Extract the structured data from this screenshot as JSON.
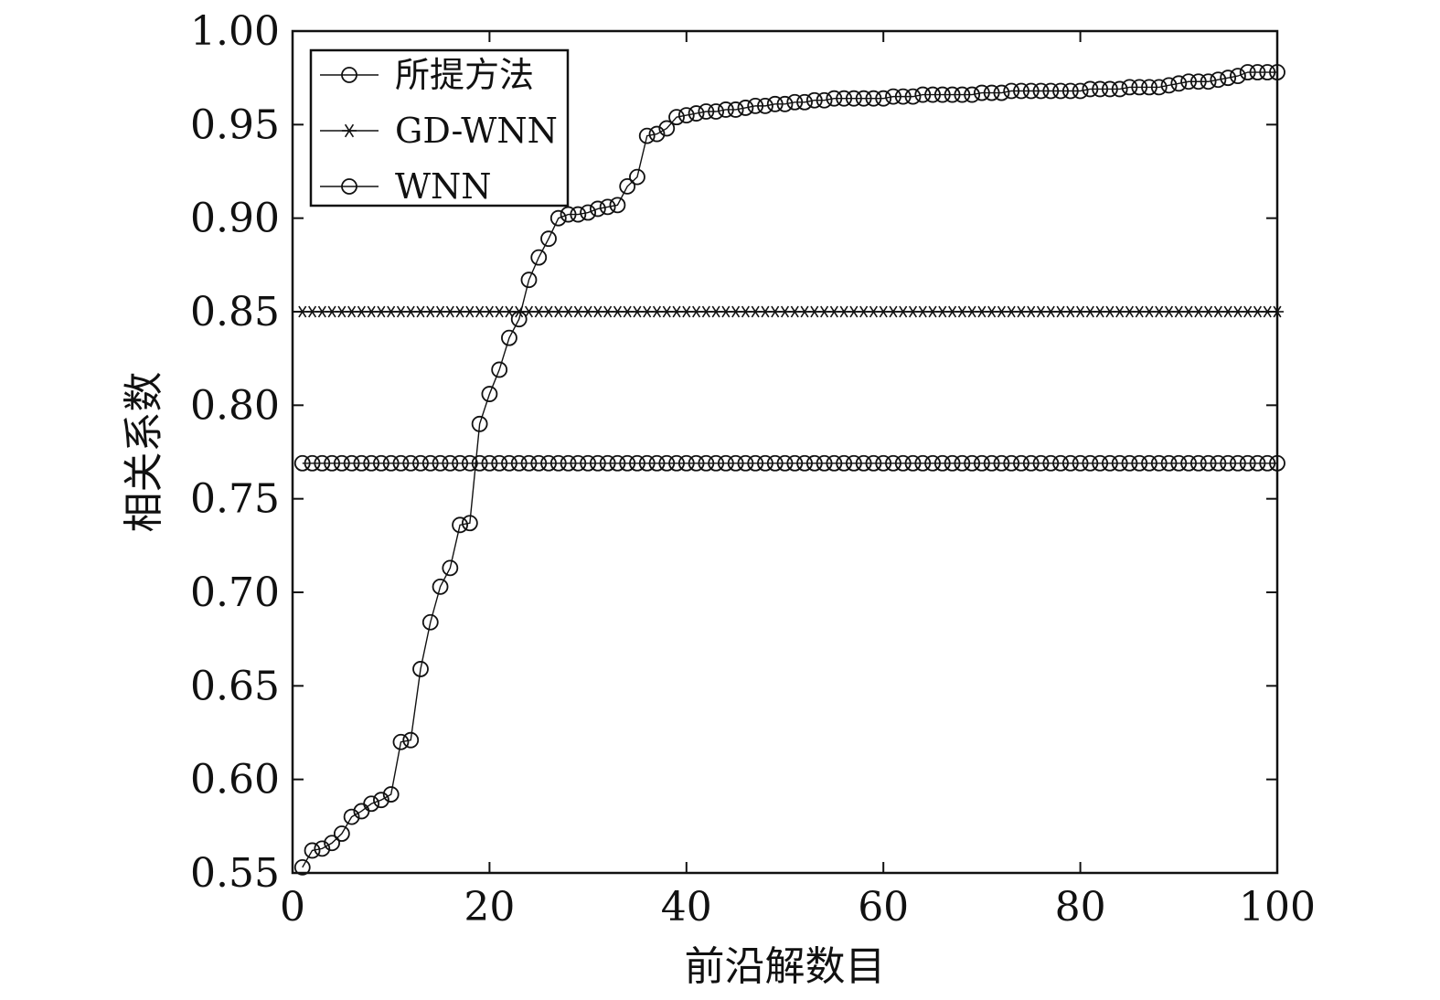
{
  "chart_data": {
    "type": "line",
    "xlabel": "前沿解数目",
    "ylabel": "相关系数",
    "xlim": [
      0,
      100
    ],
    "ylim": [
      0.55,
      1.0
    ],
    "xticks": [
      0,
      20,
      40,
      60,
      80,
      100
    ],
    "xtick_labels": [
      "0",
      "20",
      "40",
      "60",
      "80",
      "100"
    ],
    "yticks": [
      0.55,
      0.6,
      0.65,
      0.7,
      0.75,
      0.8,
      0.85,
      0.9,
      0.95,
      1.0
    ],
    "ytick_labels": [
      "0.55",
      "0.60",
      "0.65",
      "0.70",
      "0.75",
      "0.80",
      "0.85",
      "0.90",
      "0.95",
      "1.00"
    ],
    "grid": false,
    "legend_position": "top-left",
    "x": [
      1,
      2,
      3,
      4,
      5,
      6,
      7,
      8,
      9,
      10,
      11,
      12,
      13,
      14,
      15,
      16,
      17,
      18,
      19,
      20,
      21,
      22,
      23,
      24,
      25,
      26,
      27,
      28,
      29,
      30,
      31,
      32,
      33,
      34,
      35,
      36,
      37,
      38,
      39,
      40,
      41,
      42,
      43,
      44,
      45,
      46,
      47,
      48,
      49,
      50,
      51,
      52,
      53,
      54,
      55,
      56,
      57,
      58,
      59,
      60,
      61,
      62,
      63,
      64,
      65,
      66,
      67,
      68,
      69,
      70,
      71,
      72,
      73,
      74,
      75,
      76,
      77,
      78,
      79,
      80,
      81,
      82,
      83,
      84,
      85,
      86,
      87,
      88,
      89,
      90,
      91,
      92,
      93,
      94,
      95,
      96,
      97,
      98,
      99,
      100
    ],
    "series": [
      {
        "name": "所提方法",
        "marker": "circle",
        "values": [
          0.553,
          0.562,
          0.563,
          0.566,
          0.571,
          0.58,
          0.583,
          0.587,
          0.589,
          0.592,
          0.62,
          0.621,
          0.659,
          0.684,
          0.703,
          0.713,
          0.736,
          0.737,
          0.79,
          0.806,
          0.819,
          0.836,
          0.846,
          0.867,
          0.879,
          0.889,
          0.9,
          0.902,
          0.902,
          0.903,
          0.905,
          0.906,
          0.907,
          0.917,
          0.922,
          0.944,
          0.945,
          0.948,
          0.954,
          0.955,
          0.956,
          0.957,
          0.957,
          0.958,
          0.958,
          0.959,
          0.96,
          0.96,
          0.961,
          0.961,
          0.962,
          0.962,
          0.963,
          0.963,
          0.964,
          0.964,
          0.964,
          0.964,
          0.964,
          0.964,
          0.965,
          0.965,
          0.965,
          0.966,
          0.966,
          0.966,
          0.966,
          0.966,
          0.966,
          0.967,
          0.967,
          0.967,
          0.968,
          0.968,
          0.968,
          0.968,
          0.968,
          0.968,
          0.968,
          0.968,
          0.969,
          0.969,
          0.969,
          0.969,
          0.97,
          0.97,
          0.97,
          0.97,
          0.971,
          0.972,
          0.973,
          0.973,
          0.973,
          0.974,
          0.975,
          0.976,
          0.978,
          0.978,
          0.978,
          0.978
        ]
      },
      {
        "name": "GD-WNN",
        "marker": "star",
        "constant": 0.85
      },
      {
        "name": "WNN",
        "marker": "circle",
        "constant": 0.769
      }
    ]
  }
}
